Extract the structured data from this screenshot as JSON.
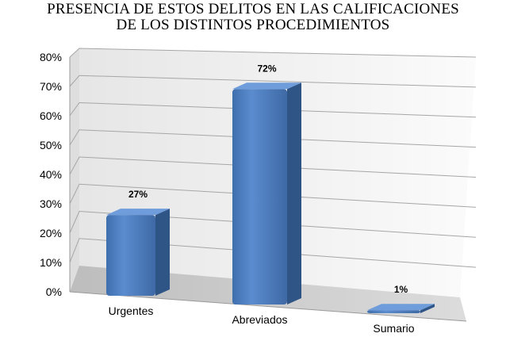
{
  "title_lines": [
    "PRESENCIA DE ESTOS DELITOS EN LAS CALIFICACIONES",
    "DE LOS DISTINTOS PROCEDIMIENTOS"
  ],
  "chart_data": {
    "type": "bar",
    "style": "3d-column",
    "title": "PRESENCIA DE ESTOS DELITOS EN LAS CALIFICACIONES DE LOS DISTINTOS PROCEDIMIENTOS",
    "categories": [
      "Urgentes",
      "Abreviados",
      "Sumario"
    ],
    "values": [
      27,
      72,
      1
    ],
    "data_labels": [
      "27%",
      "72%",
      "1%"
    ],
    "y_ticks": [
      "0%",
      "10%",
      "20%",
      "30%",
      "40%",
      "50%",
      "60%",
      "70%",
      "80%"
    ],
    "ylim": [
      0,
      80
    ],
    "unit": "%",
    "grid": true,
    "legend": "none",
    "bar_color": "#4F81BD"
  }
}
